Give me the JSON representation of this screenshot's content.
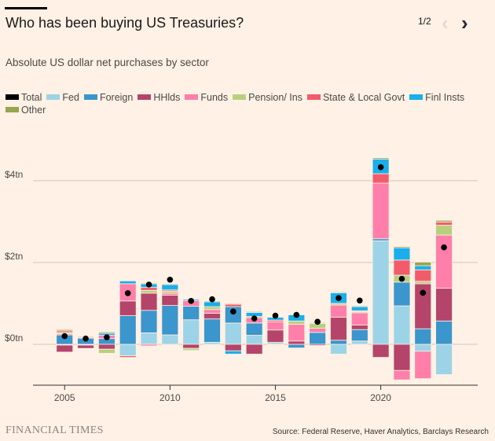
{
  "header": {
    "title": "Who has been buying US Treasuries?",
    "pager": "1/2",
    "prev_icon": "chevron-left-icon",
    "next_icon": "chevron-right-icon"
  },
  "footer": {
    "brand": "FINANCIAL TIMES",
    "source": "Source: Federal Reserve, Haver Analytics, Barclays Research"
  },
  "chart_data": {
    "type": "bar",
    "stacked": true,
    "title": "Who has been buying US Treasuries?",
    "subtitle": "Absolute US dollar net purchases by sector",
    "xlabel": "",
    "ylabel": "",
    "unit": "$tn",
    "ylim": [
      -1.0,
      5.15
    ],
    "xlim": [
      2003.5,
      2024.6
    ],
    "yticks": [
      {
        "v": 0,
        "label": "$0tn"
      },
      {
        "v": 2,
        "label": "$2tn"
      },
      {
        "v": 4,
        "label": "$4tn"
      }
    ],
    "xticks": [
      {
        "v": 2005,
        "label": "2005"
      },
      {
        "v": 2010,
        "label": "2010"
      },
      {
        "v": 2015,
        "label": "2015"
      },
      {
        "v": 2020,
        "label": "2020"
      }
    ],
    "grid": true,
    "legend_position": "top-left",
    "categories": [
      2005,
      2006,
      2007,
      2008,
      2009,
      2010,
      2011,
      2012,
      2013,
      2014,
      2015,
      2016,
      2017,
      2018,
      2019,
      2020,
      2021,
      2022,
      2023
    ],
    "total": {
      "name": "Total",
      "color": "#000000",
      "values": [
        0.2,
        0.14,
        0.17,
        1.25,
        1.46,
        1.58,
        1.06,
        1.1,
        0.8,
        0.63,
        0.7,
        0.72,
        0.55,
        1.13,
        1.07,
        4.33,
        1.6,
        1.26,
        2.37
      ]
    },
    "series": [
      {
        "name": "Fed",
        "color": "#9dd3e6",
        "values": [
          -0.02,
          -0.02,
          0,
          -0.28,
          0.28,
          0.23,
          0.6,
          0.05,
          0.52,
          0.22,
          0.02,
          0,
          0,
          -0.24,
          0.08,
          2.53,
          0.94,
          -0.17,
          -0.74
        ]
      },
      {
        "name": "Foreign",
        "color": "#3a96cc",
        "values": [
          0.23,
          0.15,
          0.14,
          0.7,
          0.55,
          0.72,
          0.33,
          0.57,
          0.4,
          0.3,
          0.03,
          -0.09,
          0.29,
          0.1,
          0.28,
          0.05,
          0.58,
          0.38,
          0.57
        ]
      },
      {
        "name": "HHlds",
        "color": "#b5446a",
        "values": [
          -0.17,
          -0.08,
          -0.12,
          0.36,
          0.42,
          0.25,
          -0.1,
          0.14,
          -0.16,
          -0.24,
          0.3,
          0.08,
          -0.03,
          0.56,
          0.11,
          -0.32,
          -0.64,
          1.1,
          0.8
        ]
      },
      {
        "name": "Funds",
        "color": "#ff7faa",
        "values": [
          0.03,
          0,
          0.08,
          0.42,
          -0.04,
          0.05,
          0.14,
          0.09,
          0,
          0.13,
          0.2,
          0.41,
          0.1,
          0.3,
          0.3,
          1.36,
          -0.23,
          -0.67,
          1.3
        ]
      },
      {
        "name": "Pension/ Ins",
        "color": "#b8d07e",
        "values": [
          0.03,
          0.02,
          -0.1,
          0,
          0.07,
          0.05,
          -0.05,
          0.07,
          0,
          0.03,
          -0.02,
          0.08,
          0.12,
          0.04,
          0.03,
          0,
          0.17,
          0.06,
          0.24
        ]
      },
      {
        "name": "State & Local Govt",
        "color": "#f25c6a",
        "values": [
          0.04,
          0.02,
          0,
          -0.04,
          0.07,
          0.03,
          0,
          0,
          0.06,
          0,
          0.04,
          0,
          0,
          0,
          0.02,
          0.23,
          0.37,
          0.28,
          0.08
        ]
      },
      {
        "name": "Finl Insts",
        "color": "#1aaeea",
        "values": [
          0,
          0,
          0.05,
          0.07,
          0.09,
          0.13,
          0.03,
          0.12,
          -0.08,
          0.1,
          0.07,
          0.15,
          0,
          0.26,
          0.1,
          0.36,
          0.3,
          0.1,
          0
        ]
      },
      {
        "name": "Other",
        "color": "#99a44e",
        "values": [
          0.03,
          0.01,
          0.03,
          0,
          0.02,
          0.02,
          0,
          0.02,
          0.02,
          0.02,
          0,
          0,
          0.02,
          0.02,
          0.02,
          0.03,
          0.03,
          0.09,
          0.04
        ]
      }
    ]
  }
}
